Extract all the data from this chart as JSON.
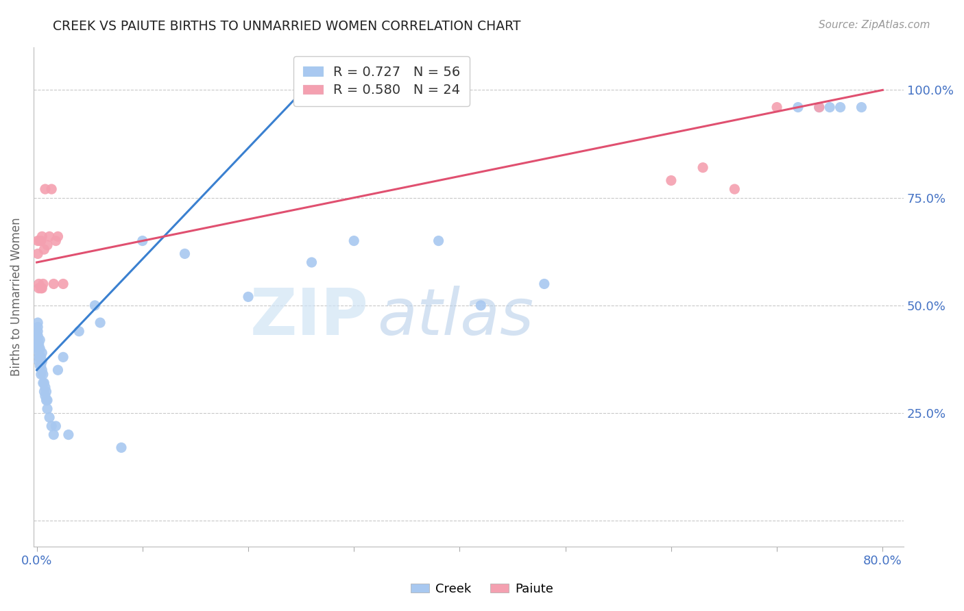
{
  "title": "CREEK VS PAIUTE BIRTHS TO UNMARRIED WOMEN CORRELATION CHART",
  "source": "Source: ZipAtlas.com",
  "ylabel": "Births to Unmarried Women",
  "legend_creek": "R = 0.727   N = 56",
  "legend_paiute": "R = 0.580   N = 24",
  "xlim": [
    -0.003,
    0.82
  ],
  "ylim": [
    -0.06,
    1.1
  ],
  "yticks": [
    0.0,
    0.25,
    0.5,
    0.75,
    1.0
  ],
  "ytick_labels_right": [
    "",
    "25.0%",
    "50.0%",
    "75.0%",
    "100.0%"
  ],
  "xticks": [
    0.0,
    0.1,
    0.2,
    0.3,
    0.4,
    0.5,
    0.6,
    0.7,
    0.8
  ],
  "xtick_labels": [
    "0.0%",
    "",
    "",
    "",
    "",
    "",
    "",
    "",
    "80.0%"
  ],
  "creek_color": "#a8c8f0",
  "paiute_color": "#f4a0b0",
  "creek_line_color": "#3a80d0",
  "paiute_line_color": "#e05070",
  "axis_label_color": "#4472c4",
  "grid_color": "#c8c8c8",
  "title_color": "#222222",
  "creek_x": [
    0.001,
    0.001,
    0.001,
    0.001,
    0.001,
    0.001,
    0.001,
    0.002,
    0.002,
    0.002,
    0.002,
    0.002,
    0.003,
    0.003,
    0.003,
    0.003,
    0.004,
    0.004,
    0.004,
    0.005,
    0.005,
    0.005,
    0.006,
    0.006,
    0.007,
    0.007,
    0.008,
    0.008,
    0.009,
    0.009,
    0.01,
    0.01,
    0.012,
    0.014,
    0.016,
    0.018,
    0.02,
    0.025,
    0.03,
    0.04,
    0.055,
    0.06,
    0.08,
    0.1,
    0.14,
    0.2,
    0.26,
    0.3,
    0.38,
    0.42,
    0.48,
    0.72,
    0.74,
    0.75,
    0.76,
    0.78
  ],
  "creek_y": [
    0.4,
    0.41,
    0.42,
    0.43,
    0.44,
    0.45,
    0.46,
    0.37,
    0.38,
    0.39,
    0.4,
    0.41,
    0.36,
    0.38,
    0.4,
    0.42,
    0.34,
    0.36,
    0.38,
    0.35,
    0.37,
    0.39,
    0.32,
    0.34,
    0.3,
    0.32,
    0.29,
    0.31,
    0.28,
    0.3,
    0.26,
    0.28,
    0.24,
    0.22,
    0.2,
    0.22,
    0.35,
    0.38,
    0.2,
    0.44,
    0.5,
    0.46,
    0.17,
    0.65,
    0.62,
    0.52,
    0.6,
    0.65,
    0.65,
    0.5,
    0.55,
    0.96,
    0.96,
    0.96,
    0.96,
    0.96
  ],
  "paiute_x": [
    0.001,
    0.001,
    0.002,
    0.002,
    0.003,
    0.004,
    0.004,
    0.005,
    0.005,
    0.006,
    0.007,
    0.008,
    0.01,
    0.012,
    0.014,
    0.016,
    0.018,
    0.02,
    0.025,
    0.6,
    0.63,
    0.66,
    0.7,
    0.74
  ],
  "paiute_y": [
    0.62,
    0.65,
    0.54,
    0.55,
    0.65,
    0.54,
    0.65,
    0.54,
    0.66,
    0.55,
    0.63,
    0.77,
    0.64,
    0.66,
    0.77,
    0.55,
    0.65,
    0.66,
    0.55,
    0.79,
    0.82,
    0.77,
    0.96,
    0.96
  ],
  "creek_line_endpoints": [
    [
      0.0,
      0.35
    ],
    [
      0.26,
      1.02
    ]
  ],
  "paiute_line_endpoints": [
    [
      0.0,
      0.6
    ],
    [
      0.8,
      1.0
    ]
  ]
}
